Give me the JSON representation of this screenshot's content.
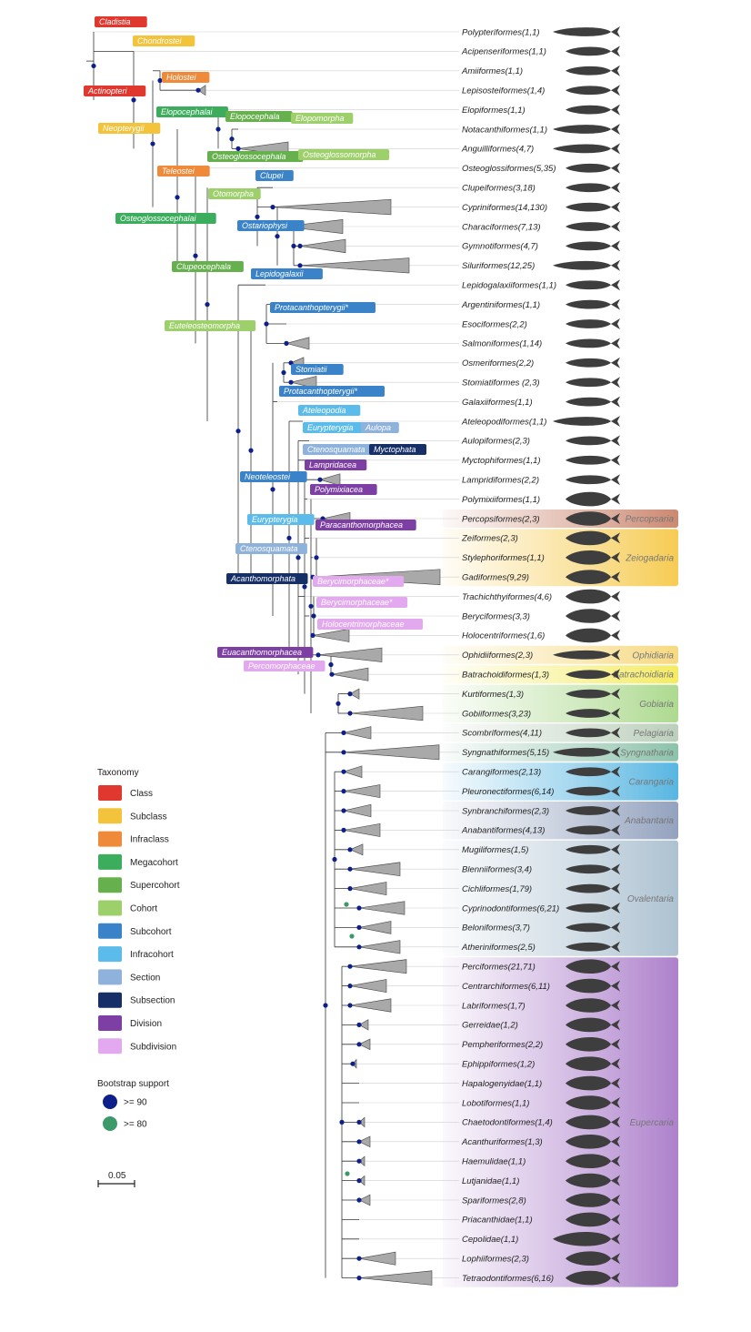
{
  "colors": {
    "class": "#e0372f",
    "subclass": "#f3c33b",
    "infraclass": "#ef8a3b",
    "megacohort": "#3cad5c",
    "supercohort": "#66b04d",
    "cohort": "#9dd06a",
    "subcohort": "#3a83c8",
    "infracohort": "#5bbcec",
    "section": "#8fb2dc",
    "subsection": "#162f66",
    "division": "#7d3fa4",
    "subdivision": "#e2a9ee",
    "bs90": "#0d1f8a",
    "bs80": "#3c9a6a"
  },
  "leaves": [
    "Polypteriformes(1,1)",
    "Acipenseriformes(1,1)",
    "Amiiformes(1,1)",
    "Lepisosteiformes(1,4)",
    "Elopiformes(1,1)",
    "Notacanthiformes(1,1)",
    "Anguilliformes(4,7)",
    "Osteoglossiformes(5,35)",
    "Clupeiformes(3,18)",
    "Cypriniformes(14,130)",
    "Characiformes(7,13)",
    "Gymnotiformes(4,7)",
    "Siluriformes(12,25)",
    "Lepidogalaxiiformes(1,1)",
    "Argentiniformes(1,1)",
    "Esociformes(2,2)",
    "Salmoniformes(1,14)",
    "Osmeriformes(2,2)",
    "Stomiatiformes (2,3)",
    "Galaxiiformes(1,1)",
    "Ateleopodiformes(1,1)",
    "Aulopiformes(2,3)",
    "Myctophiformes(1,1)",
    "Lampridiformes(2,2)",
    "Polymixiiformes(1,1)",
    "Percopsiformes(2,3)",
    "Zeiformes(2,3)",
    "Stylephoriformes(1,1)",
    "Gadiformes(9,29)",
    "Trachichthyiformes(4,6)",
    "Beryciformes(3,3)",
    "Holocentriformes(1,6)",
    "Ophidiiformes(2,3)",
    "Batrachoidiformes(1,3)",
    "Kurtiformes(1,3)",
    "Gobiiformes(3,23)",
    "Scombriformes(4,11)",
    "Syngnathiformes(5,15)",
    "Carangiformes(2,13)",
    "Pleuronectiformes(6,14)",
    "Synbranchiformes(2,3)",
    "Anabantiformes(4,13)",
    "Mugiliformes(1,5)",
    "Blenniiformes(3,4)",
    "Cichliformes(1,79)",
    "Cyprinodontiformes(6,21)",
    "Beloniformes(3,7)",
    "Atheriniformes(2,5)",
    "Perciformes(21,71)",
    "Centrarchiformes(6,11)",
    "Labriformes(1,7)",
    "Gerreidae(1,2)",
    "Pempheriformes(2,2)",
    "Ephippiformes(1,2)",
    "Hapalogenyidae(1,1)",
    "Lobotiformes(1,1)",
    "Chaetodontiformes(1,4)",
    "Acanthuriformes(1,3)",
    "Haemulidae(1,1)",
    "Lutjanidae(1,1)",
    "Spariformes(2,8)",
    "Priacanthidae(1,1)",
    "Cepolidae(1,1)",
    "Lophiiformes(2,3)",
    "Tetraodontiformes(6,16)"
  ],
  "series": [
    {
      "name": "Percopsaria",
      "color": "#c9826a",
      "from": 25,
      "to": 25
    },
    {
      "name": "Zeiogadaria",
      "color": "#f6c94a",
      "from": 26,
      "to": 28
    },
    {
      "name": "Ophidiaria",
      "color": "#f6d77a",
      "from": 32,
      "to": 32
    },
    {
      "name": "Batrachoidiaria",
      "color": "#f4ea5a",
      "from": 33,
      "to": 33
    },
    {
      "name": "Gobiaria",
      "color": "#a9d88a",
      "from": 34,
      "to": 35
    },
    {
      "name": "Pelagiaria",
      "color": "#b8cdb8",
      "from": 36,
      "to": 36
    },
    {
      "name": "Syngnatharia",
      "color": "#86bfa6",
      "from": 37,
      "to": 37
    },
    {
      "name": "Carangaria",
      "color": "#4fb2e0",
      "from": 38,
      "to": 39
    },
    {
      "name": "Anabantaria",
      "color": "#8d9dbb",
      "from": 40,
      "to": 41
    },
    {
      "name": "Ovalentaria",
      "color": "#a9bfcf",
      "from": 42,
      "to": 47
    },
    {
      "name": "Eupercaria",
      "color": "#a97ac9",
      "from": 48,
      "to": 64
    }
  ],
  "tags": [
    {
      "text": "Cladistia",
      "rank": "class"
    },
    {
      "text": "Actinopteri",
      "rank": "class"
    },
    {
      "text": "Chondrostei",
      "rank": "subclass"
    },
    {
      "text": "Neopterygii",
      "rank": "subclass"
    },
    {
      "text": "Holostei",
      "rank": "infraclass"
    },
    {
      "text": "Teleostei",
      "rank": "infraclass"
    },
    {
      "text": "Elopocephalai",
      "rank": "megacohort"
    },
    {
      "text": "Osteoglossocephalai",
      "rank": "megacohort"
    },
    {
      "text": "Elopocephala",
      "rank": "supercohort"
    },
    {
      "text": "Osteoglossocephala",
      "rank": "supercohort"
    },
    {
      "text": "Clupeocephala",
      "rank": "supercohort"
    },
    {
      "text": "Elopomorpha",
      "rank": "cohort"
    },
    {
      "text": "Osteoglossomorpha",
      "rank": "cohort"
    },
    {
      "text": "Otomorpha",
      "rank": "cohort"
    },
    {
      "text": "Euteleosteomorpha",
      "rank": "cohort"
    },
    {
      "text": "Clupei",
      "rank": "subcohort"
    },
    {
      "text": "Ostariophysi",
      "rank": "subcohort"
    },
    {
      "text": "Lepidogalaxii",
      "rank": "subcohort"
    },
    {
      "text": "Protacanthopterygii*",
      "rank": "subcohort"
    },
    {
      "text": "Stomiatii",
      "rank": "subcohort"
    },
    {
      "text": "Protacanthopterygii*",
      "rank": "subcohort"
    },
    {
      "text": "Neoteleostei",
      "rank": "subcohort"
    },
    {
      "text": "Ateleopodia",
      "rank": "infracohort"
    },
    {
      "text": "Eurypterygia",
      "rank": "infracohort"
    },
    {
      "text": "Eurypterygia",
      "rank": "infracohort"
    },
    {
      "text": "Aulopa",
      "rank": "section"
    },
    {
      "text": "Ctenosquamata",
      "rank": "section"
    },
    {
      "text": "Ctenosquamata",
      "rank": "section"
    },
    {
      "text": "Myctophata",
      "rank": "subsection"
    },
    {
      "text": "Acanthomorphata",
      "rank": "subsection"
    },
    {
      "text": "Lampridacea",
      "rank": "division"
    },
    {
      "text": "Polymixiacea",
      "rank": "division"
    },
    {
      "text": "Paracanthomorphacea",
      "rank": "division"
    },
    {
      "text": "Euacanthomorphacea",
      "rank": "division"
    },
    {
      "text": "Berycimorphaceae*",
      "rank": "subdivision"
    },
    {
      "text": "Berycimorphaceae*",
      "rank": "subdivision"
    },
    {
      "text": "Holocentrimorphaceae",
      "rank": "subdivision"
    },
    {
      "text": "Percomorphaceae",
      "rank": "subdivision"
    }
  ],
  "legend": {
    "title": "Taxonomy",
    "items": [
      {
        "label": "Class",
        "rank": "class"
      },
      {
        "label": "Subclass",
        "rank": "subclass"
      },
      {
        "label": "Infraclass",
        "rank": "infraclass"
      },
      {
        "label": "Megacohort",
        "rank": "megacohort"
      },
      {
        "label": "Supercohort",
        "rank": "supercohort"
      },
      {
        "label": "Cohort",
        "rank": "cohort"
      },
      {
        "label": "Subcohort",
        "rank": "subcohort"
      },
      {
        "label": "Infracohort",
        "rank": "infracohort"
      },
      {
        "label": "Section",
        "rank": "section"
      },
      {
        "label": "Subsection",
        "rank": "subsection"
      },
      {
        "label": "Division",
        "rank": "division"
      },
      {
        "label": "Subdivision",
        "rank": "subdivision"
      }
    ],
    "bootstrap_title": "Bootstrap support",
    "bootstrap": [
      {
        "label": ">= 90",
        "color_key": "bs90"
      },
      {
        "label": ">= 80",
        "color_key": "bs80"
      }
    ],
    "scale_label": "0.05"
  }
}
